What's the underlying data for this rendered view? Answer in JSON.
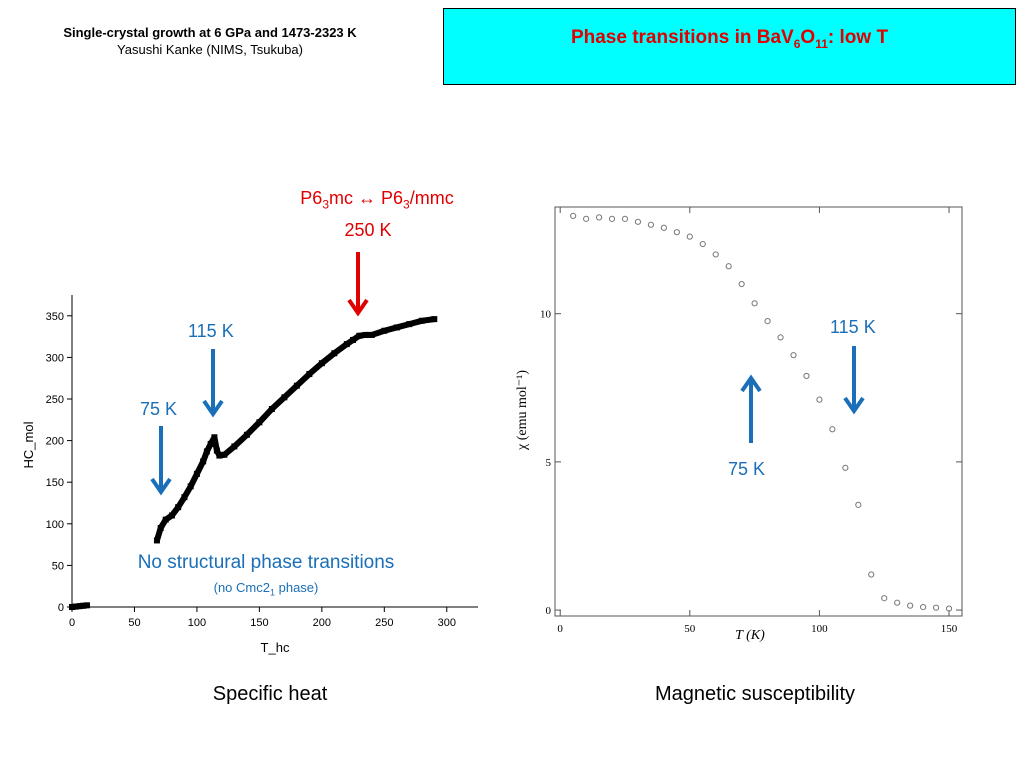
{
  "header": {
    "line1": "Single-crystal growth at 6 GPa and 1473-2323 K",
    "line2": "Yasushi Kanke (NIMS, Tsukuba)"
  },
  "title": {
    "main": "Phase transitions in BaV",
    "sub1": "6",
    "mid": "O",
    "sub2": "11",
    "tail": ": low T"
  },
  "annotations": {
    "p63mc": {
      "a": "P6",
      "a_sub": "3",
      "b": "mc ↔ P6",
      "b_sub": "3",
      "c": "/mmc"
    },
    "k250": "250 K",
    "k115_left": "115 K",
    "k75_left": "75 K",
    "no_transitions": "No structural phase transitions",
    "no_cmc_a": "(no Cmc2",
    "no_cmc_sub": "1",
    "no_cmc_b": " phase)",
    "k115_right": "115 K",
    "k75_right": "75 K"
  },
  "captions": {
    "left": "Specific heat",
    "right": "Magnetic susceptibility"
  },
  "colors": {
    "title_bg": "#00ffff",
    "title_text": "#e00000",
    "red_arrow": "#e00000",
    "blue_arrow": "#1a6fb8"
  },
  "chart_data": [
    {
      "type": "scatter",
      "xlabel": "T_hc",
      "ylabel": "HC_mol",
      "xlim": [
        0,
        325
      ],
      "ylim": [
        0,
        375
      ],
      "xticks": [
        0,
        50,
        100,
        150,
        200,
        250,
        300
      ],
      "yticks": [
        0,
        50,
        100,
        150,
        200,
        250,
        300,
        350
      ],
      "series": [
        {
          "x": [
            0,
            3,
            6,
            9,
            12
          ],
          "y": [
            0,
            0.5,
            1,
            1.5,
            2
          ]
        },
        {
          "x": [
            68,
            71,
            75,
            80,
            85,
            90,
            95,
            100,
            105,
            108,
            111,
            114,
            116,
            118,
            122,
            130,
            140,
            150,
            160,
            170,
            180,
            190,
            200,
            210,
            220,
            225,
            230,
            235,
            240,
            250,
            260,
            270,
            280,
            290
          ],
          "y": [
            80,
            95,
            105,
            110,
            120,
            132,
            145,
            160,
            175,
            187,
            196,
            204,
            188,
            182,
            183,
            193,
            207,
            222,
            238,
            252,
            266,
            280,
            293,
            305,
            316,
            321,
            326,
            327,
            327,
            332,
            336,
            340,
            344,
            346
          ]
        }
      ]
    },
    {
      "type": "scatter",
      "xlabel": "T (K)",
      "ylabel": "χ (emu mol⁻¹)",
      "xlim": [
        -2,
        155
      ],
      "ylim": [
        -0.2,
        13.6
      ],
      "xticks": [
        0,
        50,
        100,
        150
      ],
      "yticks": [
        0,
        5,
        10
      ],
      "series": [
        {
          "x": [
            5,
            10,
            15,
            20,
            25,
            30,
            35,
            40,
            45,
            50,
            55,
            60,
            65,
            70,
            75,
            80,
            85,
            90,
            95,
            100,
            105,
            110,
            115,
            120,
            125,
            130,
            135,
            140,
            145,
            150
          ],
          "y": [
            13.3,
            13.2,
            13.25,
            13.2,
            13.2,
            13.1,
            13.0,
            12.9,
            12.75,
            12.6,
            12.35,
            12.0,
            11.6,
            11.0,
            10.35,
            9.75,
            9.2,
            8.6,
            7.9,
            7.1,
            6.1,
            4.8,
            3.55,
            1.2,
            0.4,
            0.25,
            0.15,
            0.1,
            0.08,
            0.05
          ]
        }
      ]
    }
  ]
}
